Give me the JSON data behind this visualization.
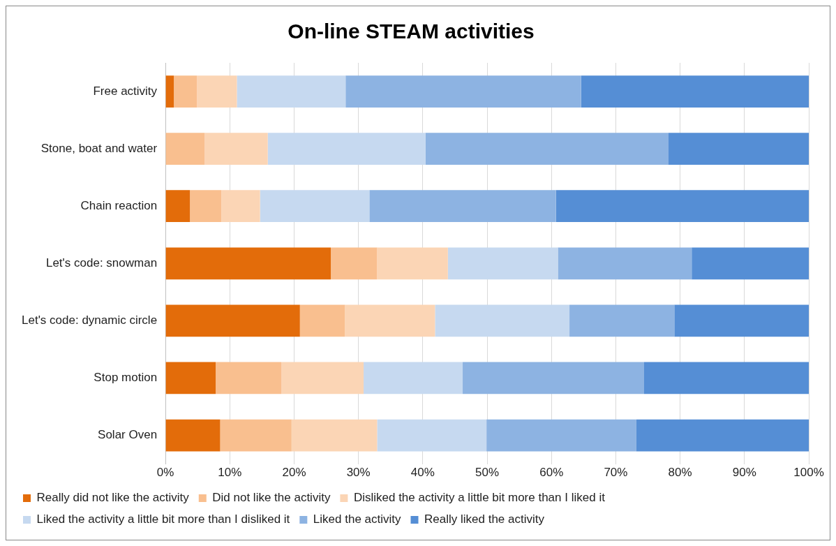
{
  "chart_data": {
    "type": "bar",
    "orientation": "horizontal",
    "stacked": true,
    "title": "On-line STEAM activities",
    "categories": [
      "Free activity",
      "Stone, boat and water",
      "Chain reaction",
      "Let's code: snowman",
      "Let's code: dynamic circle",
      "Stop motion",
      "Solar Oven"
    ],
    "series": [
      {
        "name": "Really did not like the activity",
        "color": "#e36c0a",
        "values": [
          1.3,
          0,
          3.8,
          25.7,
          20.9,
          7.8,
          8.5
        ]
      },
      {
        "name": "Did not like the activity",
        "color": "#f9bf8f",
        "values": [
          3.6,
          6.1,
          4.9,
          7.2,
          7.0,
          10.2,
          11.1
        ]
      },
      {
        "name": "Disliked the activity a little bit more than I liked it",
        "color": "#fbd5b5",
        "values": [
          6.2,
          9.8,
          6.0,
          11.0,
          14.0,
          12.8,
          13.3
        ]
      },
      {
        "name": "Liked the activity a little bit more than I disliked it",
        "color": "#c6d9f0",
        "values": [
          16.9,
          24.5,
          17.0,
          17.1,
          20.9,
          15.4,
          17.0
        ]
      },
      {
        "name": "Liked the activity",
        "color": "#8db3e2",
        "values": [
          36.6,
          37.8,
          29.0,
          20.8,
          16.3,
          28.2,
          23.3
        ]
      },
      {
        "name": "Really liked the activity",
        "color": "#558ed5",
        "values": [
          35.4,
          21.8,
          39.3,
          18.2,
          20.9,
          25.6,
          26.8
        ]
      }
    ],
    "xlim": [
      0,
      100
    ],
    "xticks": [
      {
        "value": 0,
        "label": "0%"
      },
      {
        "value": 10,
        "label": "10%"
      },
      {
        "value": 20,
        "label": "20%"
      },
      {
        "value": 30,
        "label": "30%"
      },
      {
        "value": 40,
        "label": "40%"
      },
      {
        "value": 50,
        "label": "50%"
      },
      {
        "value": 60,
        "label": "60%"
      },
      {
        "value": 70,
        "label": "70%"
      },
      {
        "value": 80,
        "label": "80%"
      },
      {
        "value": 90,
        "label": "90%"
      },
      {
        "value": 100,
        "label": "100%"
      }
    ],
    "grid": "x",
    "legend": "bottom"
  }
}
